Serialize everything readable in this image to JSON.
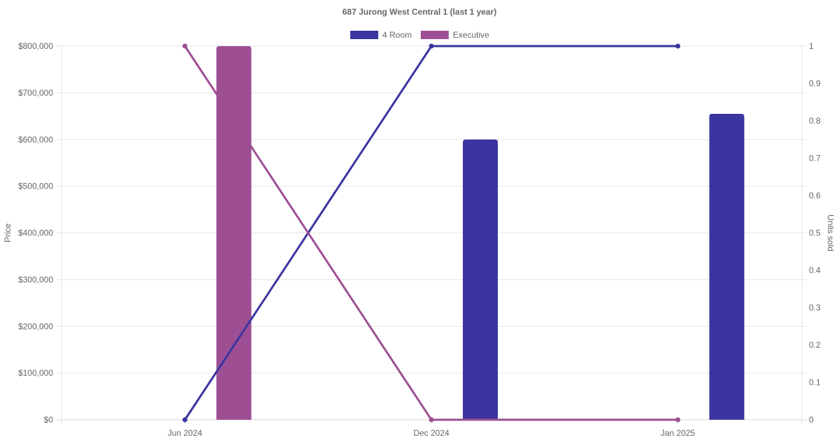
{
  "chart_data": {
    "type": "bar",
    "title": "687 Jurong West Central 1 (last 1 year)",
    "categories": [
      "Jun 2024",
      "Dec 2024",
      "Jan 2025"
    ],
    "legend_position": "top",
    "grid": true,
    "y_left": {
      "label": "Price",
      "ylim": [
        0,
        800000
      ],
      "tick_labels": [
        "$0",
        "$100,000",
        "$200,000",
        "$300,000",
        "$400,000",
        "$500,000",
        "$600,000",
        "$700,000",
        "$800,000"
      ]
    },
    "y_right": {
      "label": "Units sold",
      "ylim": [
        0,
        1
      ],
      "tick_labels": [
        "0",
        "0.1",
        "0.2",
        "0.3",
        "0.4",
        "0.5",
        "0.6",
        "0.7",
        "0.8",
        "0.9",
        "1"
      ]
    },
    "series": [
      {
        "name": "4 Room",
        "color": "#3a35a0",
        "price_values": [
          null,
          600000,
          655000
        ],
        "units_sold": [
          0,
          1,
          1
        ]
      },
      {
        "name": "Executive",
        "color": "#9e4f94",
        "price_values": [
          800000,
          null,
          null
        ],
        "units_sold": [
          1,
          0,
          0
        ]
      }
    ]
  }
}
